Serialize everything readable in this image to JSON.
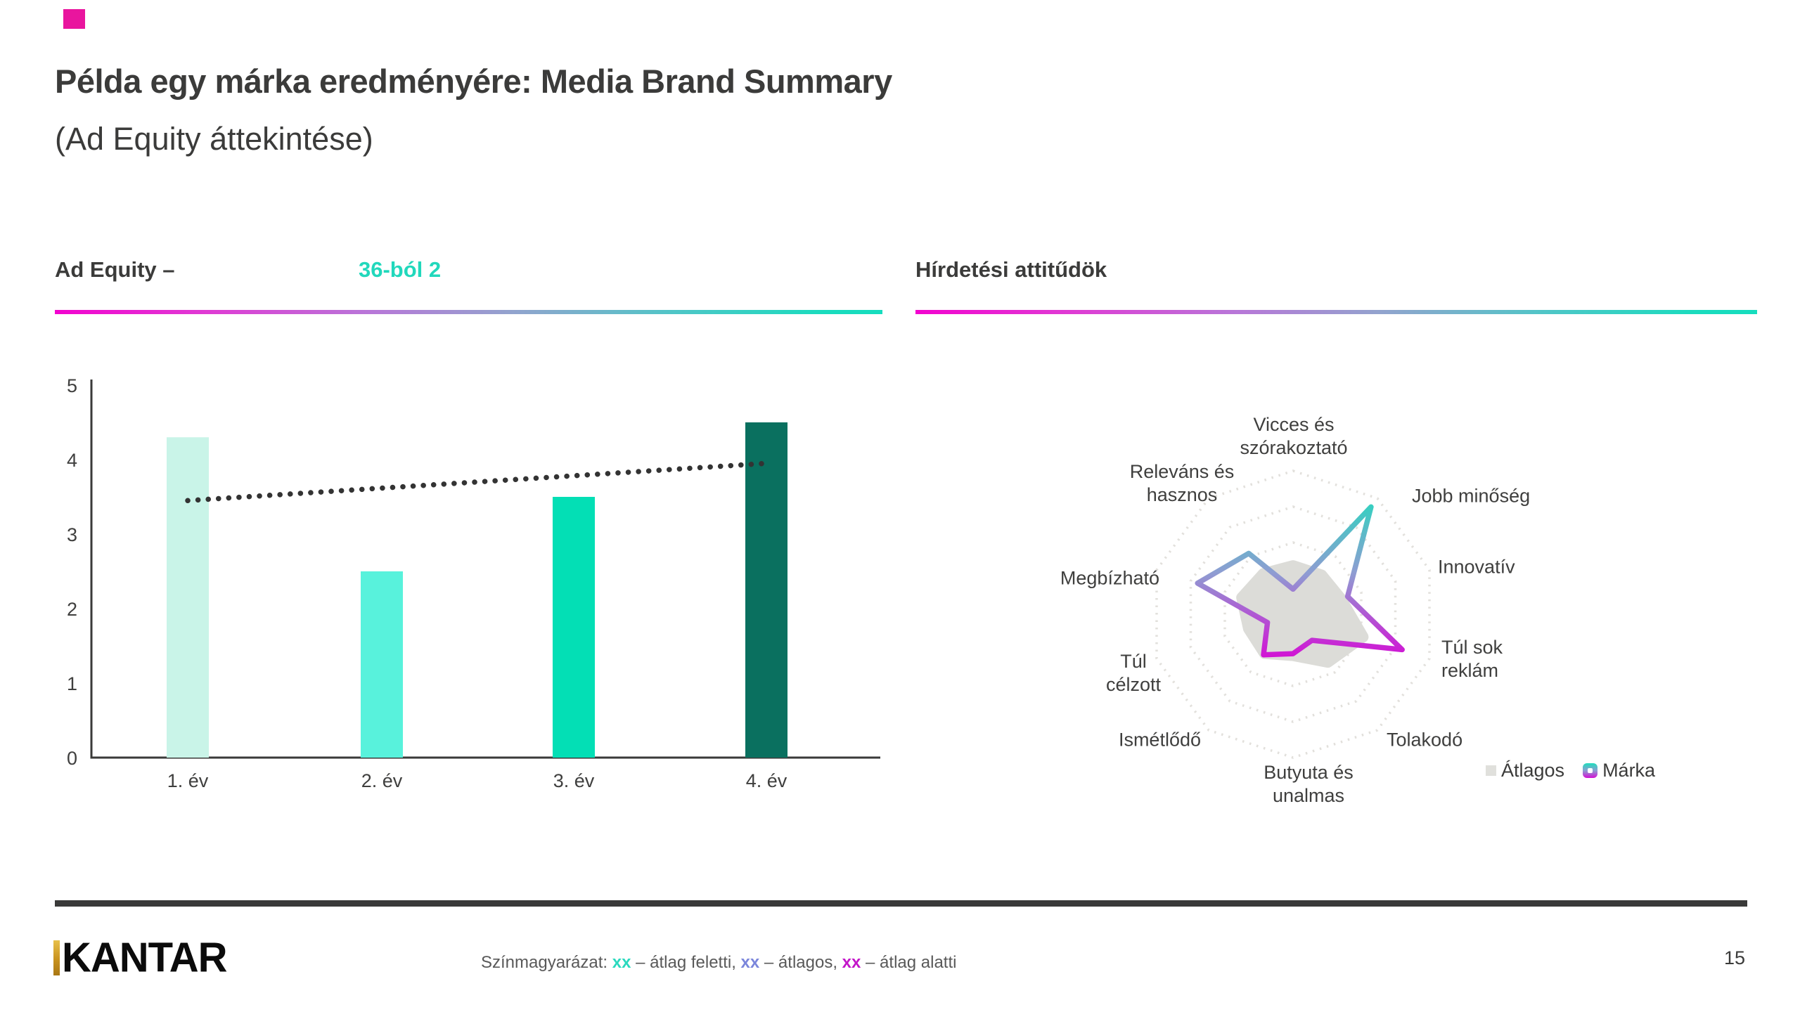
{
  "slide": {
    "title_line1": "Példa egy márka eredményére: Media Brand Summary",
    "title_line2": "(Ad Equity áttekintése)",
    "accent_color": "#E9159E"
  },
  "left_section": {
    "heading": "Ad Equity –",
    "heading_highlight": "36-ból 2",
    "highlight_color": "#21D8BC"
  },
  "right_section": {
    "heading": "Hírdetési attitűdök"
  },
  "footer": {
    "logo_text": "KANTAR",
    "legend_prefix": "Színmagyarázat: ",
    "legend_items": [
      {
        "token": "xx",
        "color": "#2BD9BE",
        "label": " – átlag feletti, "
      },
      {
        "token": "xx",
        "color": "#7B86DB",
        "label": " – átlagos, "
      },
      {
        "token": "xx",
        "color": "#C316C9",
        "label": " – átlag alatti"
      }
    ],
    "page_number": "15"
  },
  "chart_data": [
    {
      "type": "bar",
      "title": "Ad Equity évenként",
      "categories": [
        "1. év",
        "2. év",
        "3. év",
        "4. év"
      ],
      "values": [
        4.3,
        2.5,
        3.5,
        4.5
      ],
      "bar_colors": [
        "#C9F4E8",
        "#58F2DC",
        "#03DFB5",
        "#0A705F"
      ],
      "trend_line": {
        "start_value": 3.45,
        "end_value": 3.95,
        "style": "dotted",
        "color": "#333333"
      },
      "xlabel": "",
      "ylabel": "",
      "ylim": [
        0,
        5
      ],
      "yticks": [
        0,
        1,
        2,
        3,
        4,
        5
      ],
      "grid": false,
      "axis_color": "#3A3A39",
      "tick_color": "#3F3F3E"
    },
    {
      "type": "radar",
      "title": "Hírdetési attitűdök radar",
      "categories": [
        "Vicces és szórakoztató",
        "Jobb minőség",
        "Innovatív",
        "Túl sok reklám",
        "Tolakodó",
        "Butyuta és unalmas",
        "Ismétlődő",
        "Túl célzott",
        "Megbízható",
        "Releváns és hasznos"
      ],
      "rings": 4,
      "max": 4,
      "ring_color": "#E2E0DC",
      "series": [
        {
          "name": "Átlagos",
          "values": [
            1.35,
            1.35,
            1.4,
            2.05,
            1.65,
            1.15,
            1.35,
            1.3,
            1.5,
            1.4
          ],
          "color": "#DCDCD8",
          "fill": true
        },
        {
          "name": "Márka",
          "values": [
            0.7,
            3.7,
            1.6,
            3.2,
            0.9,
            1.1,
            1.4,
            0.75,
            2.8,
            2.1
          ],
          "gradient": [
            "#1EDEBC",
            "#8E9DD2",
            "#D40ED4"
          ],
          "fill": false
        }
      ],
      "legend_position": "bottom-right"
    }
  ]
}
